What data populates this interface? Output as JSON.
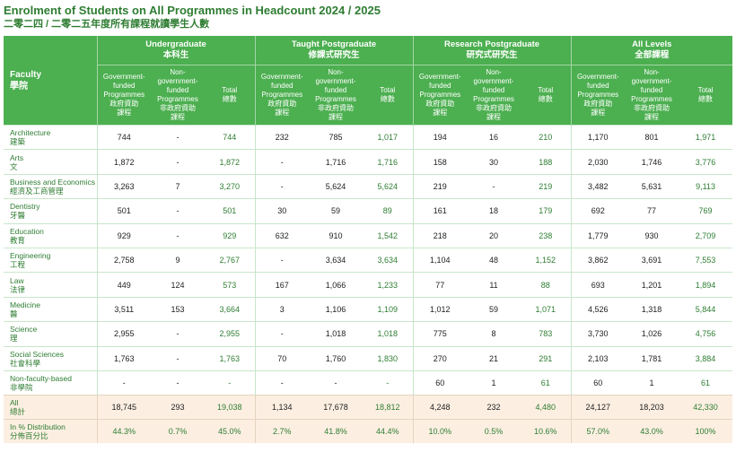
{
  "title": {
    "en": "Enrolment of Students on All Programmes in Headcount 2024 / 2025",
    "zh": "二零二四 / 二零二五年度所有課程就讀學生人數"
  },
  "header": {
    "faculty": {
      "en": "Faculty",
      "zh": "學院"
    },
    "groups": [
      {
        "en": "Undergraduate",
        "zh": "本科生"
      },
      {
        "en": "Taught Postgraduate",
        "zh": "修課式研究生"
      },
      {
        "en": "Research Postgraduate",
        "zh": "研究式研究生"
      },
      {
        "en": "All Levels",
        "zh": "全部課程"
      }
    ],
    "sub": {
      "gov": {
        "en1": "Government-",
        "en2": "funded",
        "en3": "Programmes",
        "zh": "政府資助",
        "zh2": "課程"
      },
      "nongov": {
        "en1": "Non-",
        "en2": "government-",
        "en3": "funded",
        "en4": "Programmes",
        "zh": "非政府資助",
        "zh2": "課程"
      },
      "total": {
        "en": "Total",
        "zh": "總數"
      }
    }
  },
  "rows": [
    {
      "en": "Architecture",
      "zh": "建築",
      "v": [
        "744",
        "-",
        "744",
        "232",
        "785",
        "1,017",
        "194",
        "16",
        "210",
        "1,170",
        "801",
        "1,971"
      ]
    },
    {
      "en": "Arts",
      "zh": "文",
      "v": [
        "1,872",
        "-",
        "1,872",
        "-",
        "1,716",
        "1,716",
        "158",
        "30",
        "188",
        "2,030",
        "1,746",
        "3,776"
      ]
    },
    {
      "en": "Business and Economics",
      "zh": "經濟及工商管理",
      "v": [
        "3,263",
        "7",
        "3,270",
        "-",
        "5,624",
        "5,624",
        "219",
        "-",
        "219",
        "3,482",
        "5,631",
        "9,113"
      ]
    },
    {
      "en": "Dentistry",
      "zh": "牙醫",
      "v": [
        "501",
        "-",
        "501",
        "30",
        "59",
        "89",
        "161",
        "18",
        "179",
        "692",
        "77",
        "769"
      ]
    },
    {
      "en": "Education",
      "zh": "教育",
      "v": [
        "929",
        "-",
        "929",
        "632",
        "910",
        "1,542",
        "218",
        "20",
        "238",
        "1,779",
        "930",
        "2,709"
      ]
    },
    {
      "en": "Engineering",
      "zh": "工程",
      "v": [
        "2,758",
        "9",
        "2,767",
        "-",
        "3,634",
        "3,634",
        "1,104",
        "48",
        "1,152",
        "3,862",
        "3,691",
        "7,553"
      ]
    },
    {
      "en": "Law",
      "zh": "法律",
      "v": [
        "449",
        "124",
        "573",
        "167",
        "1,066",
        "1,233",
        "77",
        "11",
        "88",
        "693",
        "1,201",
        "1,894"
      ]
    },
    {
      "en": "Medicine",
      "zh": "醫",
      "v": [
        "3,511",
        "153",
        "3,664",
        "3",
        "1,106",
        "1,109",
        "1,012",
        "59",
        "1,071",
        "4,526",
        "1,318",
        "5,844"
      ]
    },
    {
      "en": "Science",
      "zh": "理",
      "v": [
        "2,955",
        "-",
        "2,955",
        "-",
        "1,018",
        "1,018",
        "775",
        "8",
        "783",
        "3,730",
        "1,026",
        "4,756"
      ]
    },
    {
      "en": "Social Sciences",
      "zh": "社會科學",
      "v": [
        "1,763",
        "-",
        "1,763",
        "70",
        "1,760",
        "1,830",
        "270",
        "21",
        "291",
        "2,103",
        "1,781",
        "3,884"
      ]
    },
    {
      "en": "Non-faculty-based",
      "zh": "非學院",
      "v": [
        "-",
        "-",
        "-",
        "-",
        "-",
        "-",
        "60",
        "1",
        "61",
        "60",
        "1",
        "61"
      ]
    }
  ],
  "all": {
    "en": "All",
    "zh": "總計",
    "v": [
      "18,745",
      "293",
      "19,038",
      "1,134",
      "17,678",
      "18,812",
      "4,248",
      "232",
      "4,480",
      "24,127",
      "18,203",
      "42,330"
    ]
  },
  "pct": {
    "en": "In % Distribution",
    "zh": "分佈百分比",
    "v": [
      "44.3%",
      "0.7%",
      "45.0%",
      "2.7%",
      "41.8%",
      "44.4%",
      "10.0%",
      "0.5%",
      "10.6%",
      "57.0%",
      "43.0%",
      "100%"
    ]
  }
}
